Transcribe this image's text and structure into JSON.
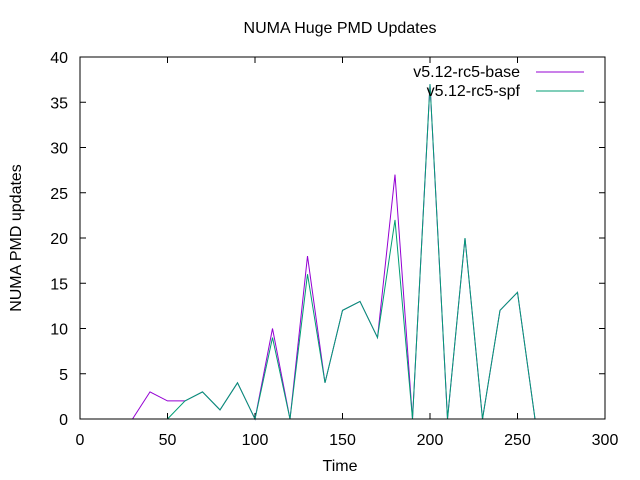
{
  "chart_data": {
    "type": "line",
    "title": "NUMA Huge PMD Updates",
    "xlabel": "Time",
    "ylabel": "NUMA PMD updates",
    "xlim": [
      0,
      300
    ],
    "ylim": [
      0,
      40
    ],
    "x_ticks": [
      0,
      50,
      100,
      150,
      200,
      250,
      300
    ],
    "y_ticks": [
      0,
      5,
      10,
      15,
      20,
      25,
      30,
      35,
      40
    ],
    "grid": false,
    "legend_position": "top-right",
    "series": [
      {
        "name": "v5.12-rc5-base",
        "color": "#9400d3",
        "x": [
          30,
          40,
          50,
          60,
          70,
          80,
          90,
          100,
          110,
          120,
          130,
          140,
          150,
          160,
          170,
          180,
          190,
          200,
          210,
          220,
          230,
          240,
          250,
          260
        ],
        "y": [
          0,
          3,
          2,
          2,
          3,
          1,
          4,
          0,
          10,
          0,
          18,
          4,
          12,
          13,
          9,
          27,
          0,
          37,
          0,
          20,
          0,
          12,
          14,
          0
        ]
      },
      {
        "name": "v5.12-rc5-spf",
        "color": "#009e73",
        "x": [
          50,
          60,
          70,
          80,
          90,
          100,
          110,
          120,
          130,
          140,
          150,
          160,
          170,
          180,
          190,
          200,
          210,
          220,
          230,
          240,
          250,
          260
        ],
        "y": [
          0,
          2,
          3,
          1,
          4,
          0,
          9,
          0,
          16,
          4,
          12,
          13,
          9,
          22,
          0,
          37,
          0,
          20,
          0,
          12,
          14,
          0
        ]
      }
    ]
  }
}
